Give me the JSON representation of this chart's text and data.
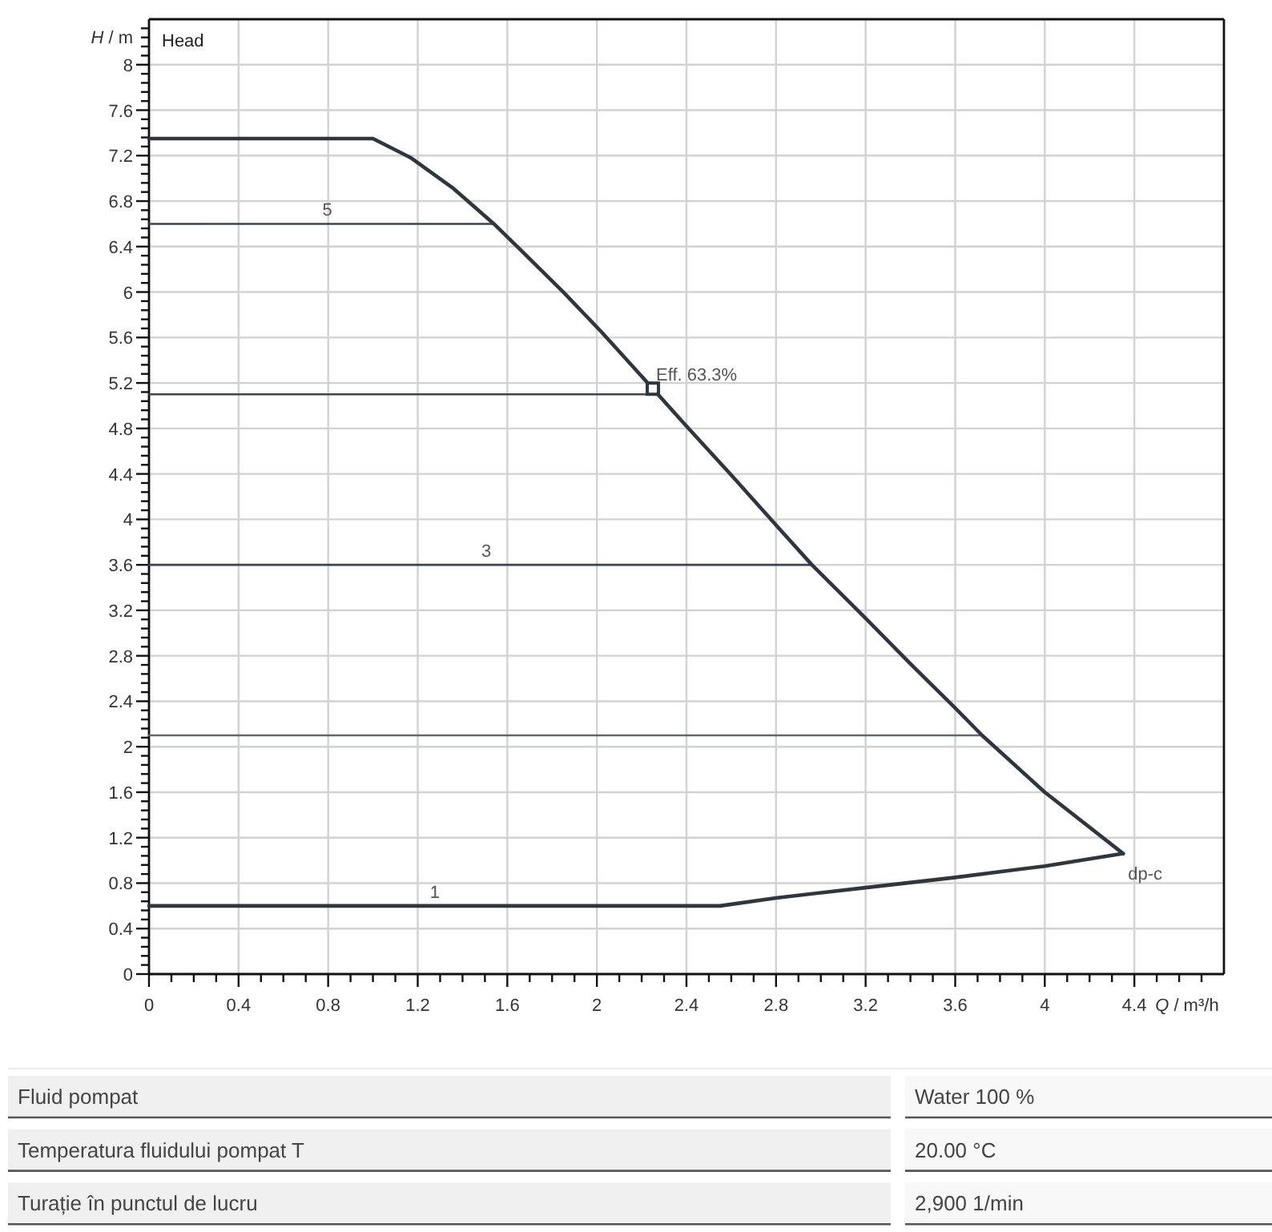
{
  "chart_data": [
    {
      "type": "line",
      "title": "Head",
      "xlabel": "Q / m³/h",
      "ylabel": "H / m",
      "xlim": [
        0,
        4.8
      ],
      "ylim": [
        0,
        8.4
      ],
      "xticks": [
        0,
        {
          "value": 0.1,
          "label": null
        },
        {
          "value": 0.2,
          "label": null
        },
        {
          "value": 0.3,
          "label": null
        },
        0.4,
        {
          "value": 0.5,
          "label": null
        },
        {
          "value": 0.6,
          "label": null
        },
        {
          "value": 0.7,
          "label": null
        },
        0.8,
        {
          "value": 0.9,
          "label": null
        },
        {
          "value": 1,
          "label": null
        },
        {
          "value": 1.1,
          "label": null
        },
        1.2,
        {
          "value": 1.3,
          "label": null
        },
        {
          "value": 1.4,
          "label": null
        },
        {
          "value": 1.5,
          "label": null
        },
        1.6,
        {
          "value": 1.7,
          "label": null
        },
        {
          "value": 1.8,
          "label": null
        },
        {
          "value": 1.9,
          "label": null
        },
        2,
        {
          "value": 2.1,
          "label": null
        },
        {
          "value": 2.2,
          "label": null
        },
        {
          "value": 2.3,
          "label": null
        },
        2.4,
        {
          "value": 2.5,
          "label": null
        },
        {
          "value": 2.6,
          "label": null
        },
        {
          "value": 2.7,
          "label": null
        },
        2.8,
        {
          "value": 2.9,
          "label": null
        },
        {
          "value": 3,
          "label": null
        },
        {
          "value": 3.1,
          "label": null
        },
        3.2,
        {
          "value": 3.3,
          "label": null
        },
        {
          "value": 3.4,
          "label": null
        },
        {
          "value": 3.5,
          "label": null
        },
        3.6,
        {
          "value": 3.7,
          "label": null
        },
        {
          "value": 3.8,
          "label": null
        },
        {
          "value": 3.9,
          "label": null
        },
        4,
        {
          "value": 4.1,
          "label": null
        },
        {
          "value": 4.2,
          "label": null
        },
        {
          "value": 4.3,
          "label": null
        },
        4.4,
        {
          "value": 4.5,
          "label": null
        },
        {
          "value": 4.6,
          "label": null
        },
        {
          "value": 4.7,
          "label": null
        }
      ],
      "yticks": [
        0,
        {
          "value": 0.08,
          "label": null
        },
        {
          "value": 0.16,
          "label": null
        },
        {
          "value": 0.24,
          "label": null
        },
        {
          "value": 0.32,
          "label": null
        },
        0.4,
        {
          "value": 0.48,
          "label": null
        },
        {
          "value": 0.56,
          "label": null
        },
        {
          "value": 0.64,
          "label": null
        },
        {
          "value": 0.72,
          "label": null
        },
        0.8,
        {
          "value": 0.88,
          "label": null
        },
        {
          "value": 0.96,
          "label": null
        },
        {
          "value": 1.04,
          "label": null
        },
        {
          "value": 1.12,
          "label": null
        },
        1.2,
        {
          "value": 1.28,
          "label": null
        },
        {
          "value": 1.36,
          "label": null
        },
        {
          "value": 1.44,
          "label": null
        },
        {
          "value": 1.52,
          "label": null
        },
        1.6,
        {
          "value": 1.68,
          "label": null
        },
        {
          "value": 1.76,
          "label": null
        },
        {
          "value": 1.84,
          "label": null
        },
        {
          "value": 1.92,
          "label": null
        },
        2,
        {
          "value": 2.08,
          "label": null
        },
        {
          "value": 2.16,
          "label": null
        },
        {
          "value": 2.24,
          "label": null
        },
        {
          "value": 2.32,
          "label": null
        },
        2.4,
        {
          "value": 2.48,
          "label": null
        },
        {
          "value": 2.56,
          "label": null
        },
        {
          "value": 2.64,
          "label": null
        },
        {
          "value": 2.72,
          "label": null
        },
        2.8,
        {
          "value": 2.88,
          "label": null
        },
        {
          "value": 2.96,
          "label": null
        },
        {
          "value": 3.04,
          "label": null
        },
        {
          "value": 3.12,
          "label": null
        },
        3.2,
        {
          "value": 3.28,
          "label": null
        },
        {
          "value": 3.36,
          "label": null
        },
        {
          "value": 3.44,
          "label": null
        },
        {
          "value": 3.52,
          "label": null
        },
        3.6,
        {
          "value": 3.68,
          "label": null
        },
        {
          "value": 3.76,
          "label": null
        },
        {
          "value": 3.84,
          "label": null
        },
        {
          "value": 3.92,
          "label": null
        },
        4,
        {
          "value": 4.08,
          "label": null
        },
        {
          "value": 4.16,
          "label": null
        },
        {
          "value": 4.24,
          "label": null
        },
        {
          "value": 4.32,
          "label": null
        },
        4.4,
        {
          "value": 4.48,
          "label": null
        },
        {
          "value": 4.56,
          "label": null
        },
        {
          "value": 4.64,
          "label": null
        },
        {
          "value": 4.72,
          "label": null
        },
        4.8,
        {
          "value": 4.88,
          "label": null
        },
        {
          "value": 4.96,
          "label": null
        },
        {
          "value": 5.04,
          "label": null
        },
        {
          "value": 5.12,
          "label": null
        },
        5.2,
        {
          "value": 5.28,
          "label": null
        },
        {
          "value": 5.36,
          "label": null
        },
        {
          "value": 5.44,
          "label": null
        },
        {
          "value": 5.52,
          "label": null
        },
        5.6,
        {
          "value": 5.68,
          "label": null
        },
        {
          "value": 5.76,
          "label": null
        },
        {
          "value": 5.84,
          "label": null
        },
        {
          "value": 5.92,
          "label": null
        },
        6,
        {
          "value": 6.08,
          "label": null
        },
        {
          "value": 6.16,
          "label": null
        },
        {
          "value": 6.24,
          "label": null
        },
        {
          "value": 6.32,
          "label": null
        },
        6.4,
        {
          "value": 6.48,
          "label": null
        },
        {
          "value": 6.56,
          "label": null
        },
        {
          "value": 6.64,
          "label": null
        },
        {
          "value": 6.72,
          "label": null
        },
        6.8,
        {
          "value": 6.88,
          "label": null
        },
        {
          "value": 6.96,
          "label": null
        },
        {
          "value": 7.04,
          "label": null
        },
        {
          "value": 7.12,
          "label": null
        },
        7.2,
        {
          "value": 7.28,
          "label": null
        },
        {
          "value": 7.36,
          "label": null
        },
        {
          "value": 7.44,
          "label": null
        },
        {
          "value": 7.52,
          "label": null
        },
        7.6,
        {
          "value": 7.68,
          "label": null
        },
        {
          "value": 7.76,
          "label": null
        },
        {
          "value": 7.84,
          "label": null
        },
        {
          "value": 7.92,
          "label": null
        },
        8,
        {
          "value": 8.08,
          "label": null
        },
        {
          "value": 8.16,
          "label": null
        },
        {
          "value": 8.24,
          "label": null
        },
        {
          "value": 8.32,
          "label": null
        }
      ],
      "grid": true,
      "series": [
        {
          "color": "#3a4652",
          "x": [
            0,
            1.54
          ],
          "values": [
            6.6,
            6.6
          ]
        },
        {
          "color": "#3a4652",
          "x": [
            0,
            2.25
          ],
          "values": [
            5.1,
            5.1
          ]
        },
        {
          "color": "#3a4652",
          "x": [
            0,
            2.96
          ],
          "values": [
            3.6,
            3.6
          ]
        },
        {
          "color": "#5f6870",
          "x": [
            0,
            3.72
          ],
          "values": [
            2.1,
            2.1
          ]
        },
        {
          "color": "#2f363d",
          "x": [
            0,
            1.0,
            1.17,
            1.36,
            1.54,
            1.66,
            1.85,
            2.02,
            2.25,
            2.4,
            2.6,
            2.8,
            2.96,
            3.2,
            3.4,
            3.6,
            3.72,
            4.0,
            4.35
          ],
          "values": [
            7.35,
            7.35,
            7.18,
            6.91,
            6.6,
            6.37,
            6.0,
            5.65,
            5.15,
            4.82,
            4.39,
            3.95,
            3.6,
            3.13,
            2.73,
            2.34,
            2.1,
            1.6,
            1.06
          ]
        },
        {
          "name": "dp-c",
          "color": "#2f363d",
          "x": [
            0,
            2.55,
            2.8,
            3.2,
            3.6,
            4.0,
            4.35
          ],
          "values": [
            0.6,
            0.6,
            0.67,
            0.76,
            0.85,
            0.95,
            1.06
          ]
        },
        {
          "type": "scatter",
          "marker": "square",
          "color": "#2f363d",
          "x": [
            2.25
          ],
          "values": [
            5.15
          ]
        }
      ],
      "annotations": [
        {
          "text": "5",
          "x": 0.76,
          "y": 6.6
        },
        {
          "text": "3",
          "x": 1.47,
          "y": 3.6
        },
        {
          "text": "1",
          "x": 1.24,
          "y": 0.6
        },
        {
          "text": "Eff. 63.3%",
          "x": 2.25,
          "y": 5.15
        }
      ]
    },
    {
      "type": "other",
      "annotations": [
        "Fluid pompat",
        "Water 100 %",
        "Temperatura fluidului pompat T",
        "20.00 °C",
        "Turație în punctul de lucru",
        "2,900 1/min"
      ]
    }
  ]
}
